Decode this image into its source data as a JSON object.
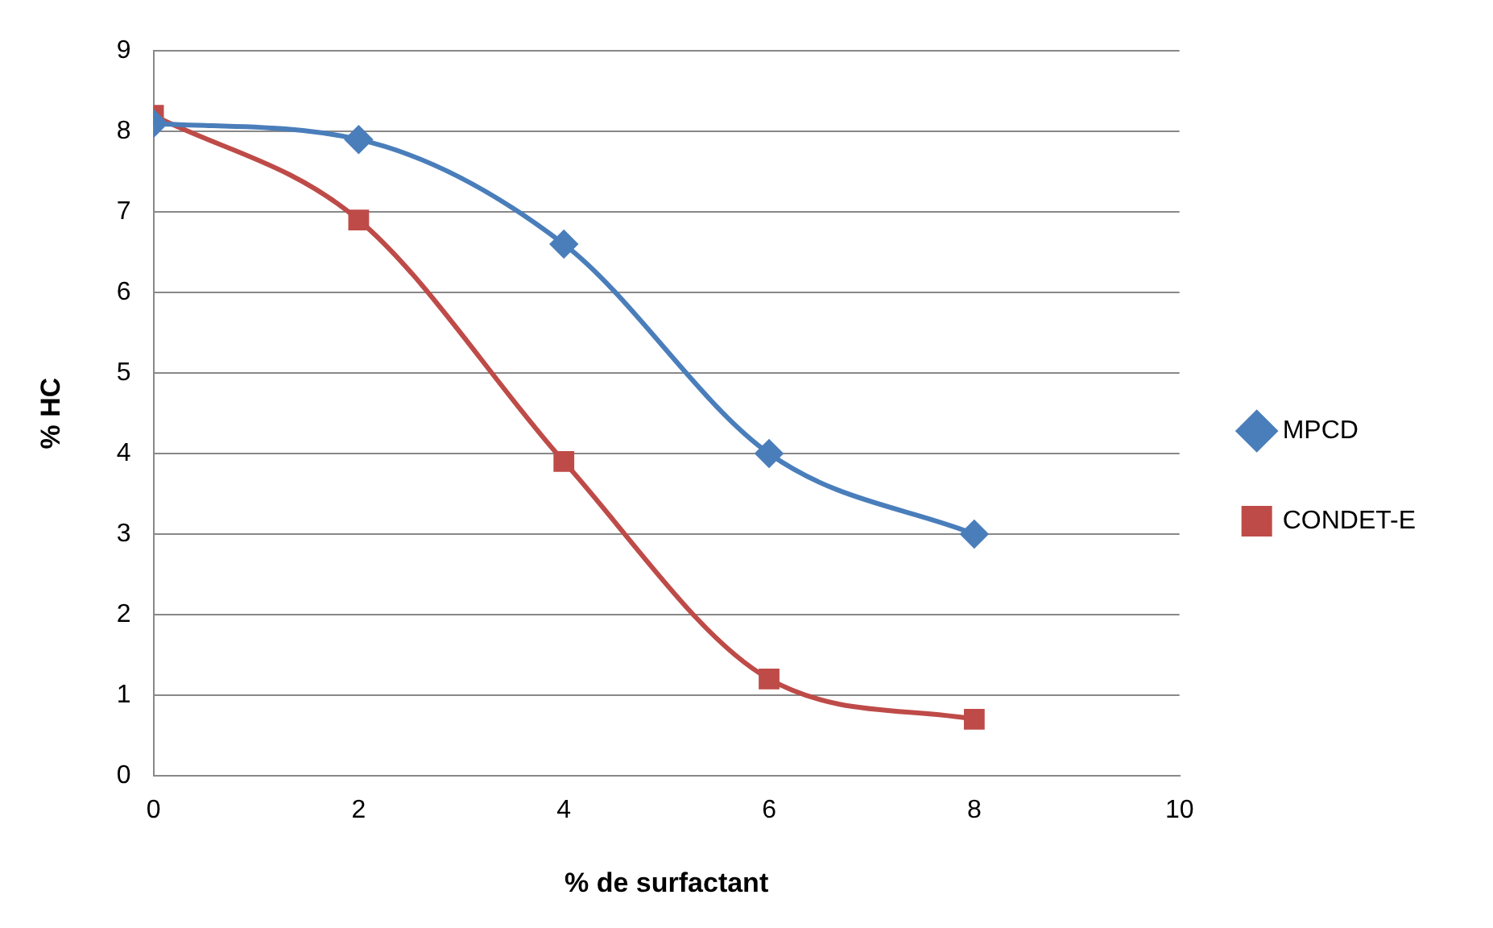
{
  "chart_data": {
    "type": "line",
    "xlabel": "% de surfactant",
    "ylabel": "% HC",
    "x": [
      0,
      2,
      4,
      6,
      8
    ],
    "series": [
      {
        "name": "MPCD",
        "color": "#4a7ebb",
        "marker": "diamond",
        "values": [
          8.1,
          7.9,
          6.6,
          4.0,
          3.0
        ]
      },
      {
        "name": "CONDET-E",
        "color": "#be4b48",
        "marker": "square",
        "values": [
          8.2,
          6.9,
          3.9,
          1.2,
          0.7
        ]
      }
    ],
    "xlim": [
      0,
      10
    ],
    "xticks": [
      0,
      2,
      4,
      6,
      8,
      10
    ],
    "ylim": [
      0,
      9
    ],
    "yticks": [
      0,
      1,
      2,
      3,
      4,
      5,
      6,
      7,
      8,
      9
    ],
    "grid": "y",
    "legend": "right",
    "line_style": "solid"
  }
}
